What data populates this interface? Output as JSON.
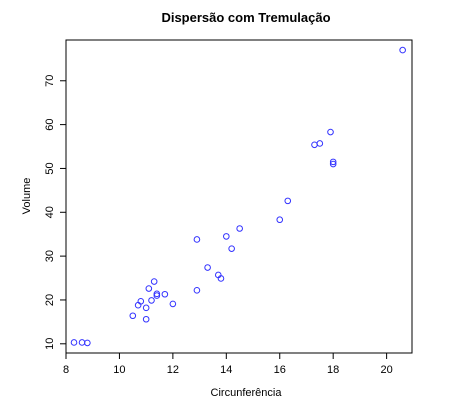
{
  "chart_data": {
    "type": "scatter",
    "title": "Dispersão com Tremulação",
    "xlabel": "Circunferência",
    "ylabel": "Volume",
    "xlim": [
      8.0,
      20.95
    ],
    "ylim": [
      7.9,
      79.3
    ],
    "xticks": [
      8,
      10,
      12,
      14,
      16,
      18,
      20
    ],
    "yticks": [
      10,
      20,
      30,
      40,
      50,
      60,
      70
    ],
    "point_color": "#3333ff",
    "grid": false,
    "legend": "none",
    "points": [
      {
        "x": 8.3,
        "y": 10.3
      },
      {
        "x": 8.6,
        "y": 10.3
      },
      {
        "x": 8.8,
        "y": 10.2
      },
      {
        "x": 10.5,
        "y": 16.4
      },
      {
        "x": 10.7,
        "y": 18.8
      },
      {
        "x": 10.8,
        "y": 19.7
      },
      {
        "x": 11.0,
        "y": 15.6
      },
      {
        "x": 11.0,
        "y": 18.2
      },
      {
        "x": 11.1,
        "y": 22.6
      },
      {
        "x": 11.2,
        "y": 19.9
      },
      {
        "x": 11.3,
        "y": 24.2
      },
      {
        "x": 11.4,
        "y": 21.0
      },
      {
        "x": 11.4,
        "y": 21.4
      },
      {
        "x": 11.7,
        "y": 21.3
      },
      {
        "x": 12.0,
        "y": 19.1
      },
      {
        "x": 12.9,
        "y": 22.2
      },
      {
        "x": 12.9,
        "y": 33.8
      },
      {
        "x": 13.3,
        "y": 27.4
      },
      {
        "x": 13.7,
        "y": 25.7
      },
      {
        "x": 13.8,
        "y": 24.9
      },
      {
        "x": 14.0,
        "y": 34.5
      },
      {
        "x": 14.2,
        "y": 31.7
      },
      {
        "x": 14.5,
        "y": 36.3
      },
      {
        "x": 16.0,
        "y": 38.3
      },
      {
        "x": 16.3,
        "y": 42.6
      },
      {
        "x": 17.3,
        "y": 55.4
      },
      {
        "x": 17.5,
        "y": 55.7
      },
      {
        "x": 17.9,
        "y": 58.3
      },
      {
        "x": 18.0,
        "y": 51.5
      },
      {
        "x": 18.0,
        "y": 51.0
      },
      {
        "x": 20.6,
        "y": 77.0
      }
    ]
  }
}
